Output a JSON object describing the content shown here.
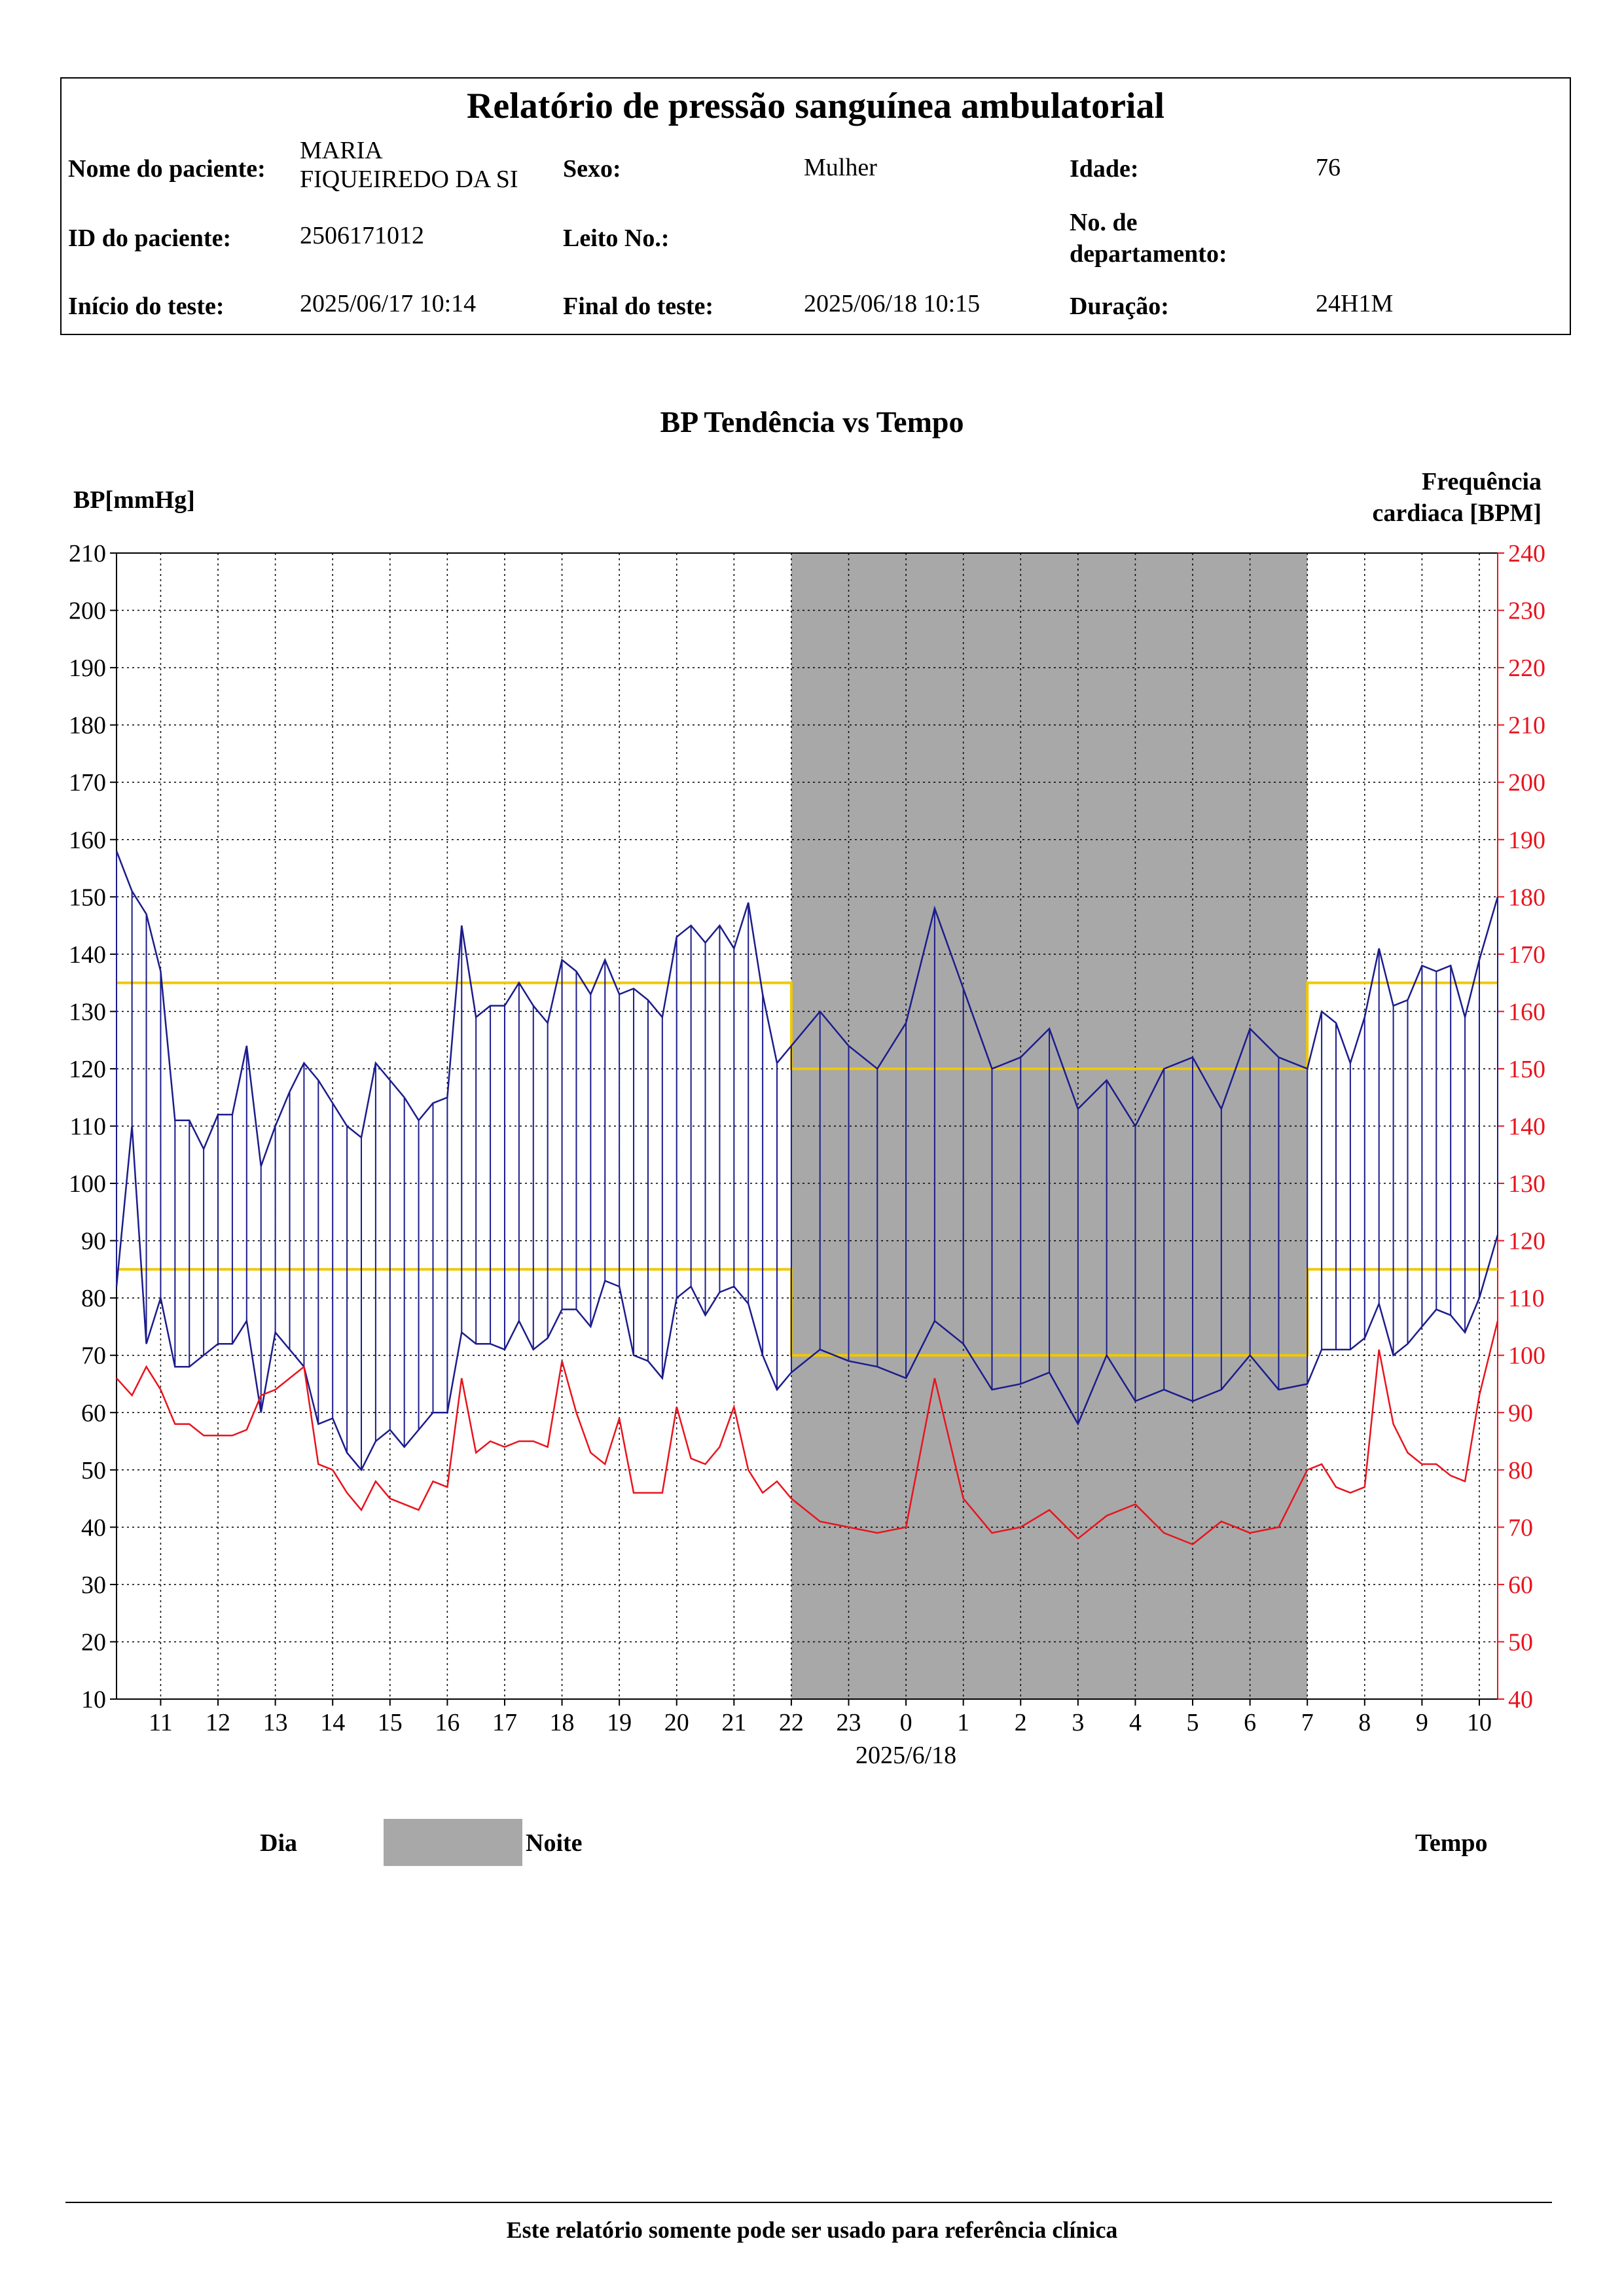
{
  "report": {
    "title": "Relatório de pressão sanguínea ambulatorial",
    "fields": {
      "patient_name_label": "Nome do paciente:",
      "patient_name_line1": "MARIA",
      "patient_name_line2": "FIQUEIREDO  DA SI",
      "sex_label": "Sexo:",
      "sex_value": "Mulher",
      "age_label": "Idade:",
      "age_value": "76",
      "patient_id_label": "ID do paciente:",
      "patient_id_value": "2506171012",
      "bed_label": "Leito No.:",
      "bed_value": "",
      "dept_label_line1": "No. de",
      "dept_label_line2": "departamento:",
      "dept_value": "",
      "start_label": "Início do teste:",
      "start_value": "2025/06/17 10:14",
      "end_label": "Final do teste:",
      "end_value": "2025/06/18 10:15",
      "duration_label": "Duração:",
      "duration_value": "24H1M"
    }
  },
  "chart_data": {
    "type": "line",
    "title": "BP Tendência vs Tempo",
    "ylabel": "BP[mmHg]",
    "y2label_line1": "Frequência",
    "y2label_line2": "cardiaca [BPM]",
    "ylim": [
      10,
      210
    ],
    "y_ticks": [
      10,
      20,
      30,
      40,
      50,
      60,
      70,
      80,
      90,
      100,
      110,
      120,
      130,
      140,
      150,
      160,
      170,
      180,
      190,
      200,
      210
    ],
    "y2lim": [
      40,
      240
    ],
    "y2_ticks": [
      40,
      50,
      60,
      70,
      80,
      90,
      100,
      110,
      120,
      130,
      140,
      150,
      160,
      170,
      180,
      190,
      200,
      210,
      220,
      230,
      240
    ],
    "xlim_hours": [
      10.23,
      34.32
    ],
    "x_tick_labels": [
      "11",
      "12",
      "13",
      "14",
      "15",
      "16",
      "17",
      "18",
      "19",
      "20",
      "21",
      "22",
      "23",
      "0",
      "1",
      "2",
      "3",
      "4",
      "5",
      "6",
      "7",
      "8",
      "9",
      "10"
    ],
    "x_date_label": "2025/6/18",
    "grid": true,
    "night_period": {
      "start_hour": 22,
      "end_hour": 31
    },
    "thresholds": {
      "day_systolic": 135,
      "day_diastolic": 85,
      "night_systolic": 120,
      "night_diastolic": 70
    },
    "series": [
      {
        "x": [
          10.23,
          10.5,
          10.75,
          11.0,
          11.25,
          11.5,
          11.75,
          12.0,
          12.25,
          12.5,
          12.75,
          13.0,
          13.25,
          13.5,
          13.75,
          14.0,
          14.25,
          14.5,
          14.75,
          15.0,
          15.25,
          15.5,
          15.75,
          16.0,
          16.25,
          16.5,
          16.75,
          17.0,
          17.25,
          17.5,
          17.75,
          18.0,
          18.25,
          18.5,
          18.75,
          19.0,
          19.25,
          19.5,
          19.75,
          20.0,
          20.25,
          20.5,
          20.75,
          21.0,
          21.25,
          21.5,
          21.75,
          22.0,
          22.5,
          23.0,
          23.5,
          24.0,
          24.5,
          25.0,
          25.5,
          26.0,
          26.5,
          27.0,
          27.5,
          28.0,
          28.5,
          29.0,
          29.5,
          30.0,
          30.5,
          31.0,
          31.25,
          31.5,
          31.75,
          32.0,
          32.25,
          32.5,
          32.75,
          33.0,
          33.25,
          33.5,
          33.75,
          34.0,
          34.32
        ],
        "values": [
          158,
          151,
          147,
          137,
          111,
          111,
          106,
          112,
          112,
          124,
          103,
          110,
          116,
          121,
          118,
          114,
          110,
          108,
          121,
          118,
          115,
          111,
          114,
          115,
          145,
          129,
          131,
          131,
          135,
          131,
          128,
          139,
          137,
          133,
          139,
          133,
          134,
          132,
          129,
          143,
          145,
          142,
          145,
          141,
          149,
          133,
          121,
          124,
          130,
          124,
          120,
          128,
          148,
          134,
          120,
          122,
          127,
          113,
          118,
          110,
          120,
          122,
          113,
          127,
          122,
          120,
          130,
          128,
          121,
          129,
          141,
          131,
          132,
          138,
          137,
          138,
          129,
          139,
          150
        ]
      },
      {
        "x": [
          10.23,
          10.5,
          10.75,
          11.0,
          11.25,
          11.5,
          11.75,
          12.0,
          12.25,
          12.5,
          12.75,
          13.0,
          13.25,
          13.5,
          13.75,
          14.0,
          14.25,
          14.5,
          14.75,
          15.0,
          15.25,
          15.5,
          15.75,
          16.0,
          16.25,
          16.5,
          16.75,
          17.0,
          17.25,
          17.5,
          17.75,
          18.0,
          18.25,
          18.5,
          18.75,
          19.0,
          19.25,
          19.5,
          19.75,
          20.0,
          20.25,
          20.5,
          20.75,
          21.0,
          21.25,
          21.5,
          21.75,
          22.0,
          22.5,
          23.0,
          23.5,
          24.0,
          24.5,
          25.0,
          25.5,
          26.0,
          26.5,
          27.0,
          27.5,
          28.0,
          28.5,
          29.0,
          29.5,
          30.0,
          30.5,
          31.0,
          31.25,
          31.5,
          31.75,
          32.0,
          32.25,
          32.5,
          32.75,
          33.0,
          33.25,
          33.5,
          33.75,
          34.0,
          34.32
        ],
        "values": [
          82,
          110,
          72,
          80,
          68,
          68,
          70,
          72,
          72,
          76,
          60,
          74,
          71,
          68,
          58,
          59,
          53,
          50,
          55,
          57,
          54,
          57,
          60,
          60,
          74,
          72,
          72,
          71,
          76,
          71,
          73,
          78,
          78,
          75,
          83,
          82,
          70,
          69,
          66,
          80,
          82,
          77,
          81,
          82,
          79,
          70,
          64,
          67,
          71,
          69,
          68,
          66,
          76,
          72,
          64,
          65,
          67,
          58,
          70,
          62,
          64,
          62,
          64,
          70,
          64,
          65,
          71,
          71,
          71,
          73,
          79,
          70,
          72,
          75,
          78,
          77,
          74,
          80,
          91
        ]
      },
      {
        "x": [
          10.23,
          10.5,
          10.75,
          11.0,
          11.25,
          11.5,
          11.75,
          12.0,
          12.25,
          12.5,
          12.75,
          13.0,
          13.25,
          13.5,
          13.75,
          14.0,
          14.25,
          14.5,
          14.75,
          15.0,
          15.25,
          15.5,
          15.75,
          16.0,
          16.25,
          16.5,
          16.75,
          17.0,
          17.25,
          17.5,
          17.75,
          18.0,
          18.25,
          18.5,
          18.75,
          19.0,
          19.25,
          19.5,
          19.75,
          20.0,
          20.25,
          20.5,
          20.75,
          21.0,
          21.25,
          21.5,
          21.75,
          22.0,
          22.5,
          23.0,
          23.5,
          24.0,
          24.5,
          25.0,
          25.5,
          26.0,
          26.5,
          27.0,
          27.5,
          28.0,
          28.5,
          29.0,
          29.5,
          30.0,
          30.5,
          31.0,
          31.25,
          31.5,
          31.75,
          32.0,
          32.25,
          32.5,
          32.75,
          33.0,
          33.25,
          33.5,
          33.75,
          34.0,
          34.32
        ],
        "values": [
          96,
          93,
          98,
          94,
          88,
          88,
          86,
          86,
          86,
          87,
          93,
          94,
          96,
          98,
          81,
          80,
          76,
          73,
          78,
          75,
          74,
          73,
          78,
          77,
          96,
          83,
          85,
          84,
          85,
          85,
          84,
          99,
          90,
          83,
          81,
          89,
          76,
          76,
          76,
          91,
          82,
          81,
          84,
          91,
          80,
          76,
          78,
          75,
          71,
          70,
          69,
          70,
          96,
          75,
          69,
          70,
          73,
          68,
          72,
          74,
          69,
          67,
          71,
          69,
          70,
          80,
          81,
          77,
          76,
          77,
          101,
          88,
          83,
          81,
          81,
          79,
          78,
          93,
          106
        ]
      }
    ],
    "colors": {
      "systolic_diastolic": "#1c1c8c",
      "heart_rate": "#e8141e",
      "threshold": "#f0c800",
      "night": "#a8a8a8",
      "right_axis": "#e8141e"
    }
  },
  "legend": {
    "day_label": "Dia",
    "night_label": "Noite",
    "time_label": "Tempo"
  },
  "footer": {
    "text": "Este relatório somente pode ser usado para referência clínica"
  }
}
